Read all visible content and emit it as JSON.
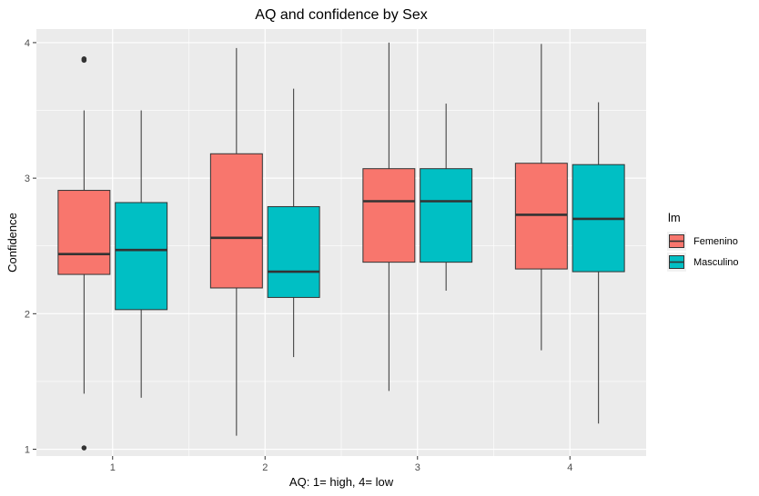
{
  "chart_data": {
    "type": "boxplot",
    "title": "AQ and confidence by Sex",
    "xlabel": "AQ: 1= high, 4= low",
    "ylabel": "Confidence",
    "categories": [
      "1",
      "2",
      "3",
      "4"
    ],
    "y_ticks": [
      "1",
      "2",
      "3",
      "4"
    ],
    "ylim": [
      0.95,
      4.1
    ],
    "legend_position": "right",
    "legend": {
      "title": "lm",
      "entries": [
        "Femenino",
        "Masculino"
      ]
    },
    "colors": {
      "Femenino": "#F8766D",
      "Masculino": "#00BFC4",
      "panel": "#EBEBEB",
      "grid": "#FFFFFF"
    },
    "series": [
      {
        "name": "Femenino",
        "boxes": [
          {
            "category": "1",
            "whisker_low": 1.41,
            "q1": 2.29,
            "median": 2.44,
            "q3": 2.91,
            "whisker_high": 3.5,
            "outliers": [
              3.87,
              3.88,
              1.01
            ]
          },
          {
            "category": "2",
            "whisker_low": 1.1,
            "q1": 2.19,
            "median": 2.56,
            "q3": 3.18,
            "whisker_high": 3.96,
            "outliers": []
          },
          {
            "category": "3",
            "whisker_low": 1.43,
            "q1": 2.38,
            "median": 2.83,
            "q3": 3.07,
            "whisker_high": 4.0,
            "outliers": []
          },
          {
            "category": "4",
            "whisker_low": 1.73,
            "q1": 2.33,
            "median": 2.73,
            "q3": 3.11,
            "whisker_high": 3.99,
            "outliers": []
          }
        ]
      },
      {
        "name": "Masculino",
        "boxes": [
          {
            "category": "1",
            "whisker_low": 1.38,
            "q1": 2.03,
            "median": 2.47,
            "q3": 2.82,
            "whisker_high": 3.5,
            "outliers": []
          },
          {
            "category": "2",
            "whisker_low": 1.68,
            "q1": 2.12,
            "median": 2.31,
            "q3": 2.79,
            "whisker_high": 3.66,
            "outliers": []
          },
          {
            "category": "3",
            "whisker_low": 2.17,
            "q1": 2.38,
            "median": 2.83,
            "q3": 3.07,
            "whisker_high": 3.55,
            "outliers": []
          },
          {
            "category": "4",
            "whisker_low": 1.19,
            "q1": 2.31,
            "median": 2.7,
            "q3": 3.1,
            "whisker_high": 3.56,
            "outliers": []
          }
        ]
      }
    ]
  }
}
